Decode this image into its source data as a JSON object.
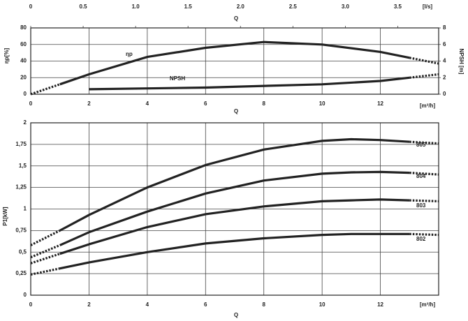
{
  "chart_data": [
    {
      "type": "line",
      "xtop_label": "Q",
      "xtop_unit": "[l/s]",
      "xtop_lim": [
        0,
        3.89
      ],
      "xtop_ticks": [
        0,
        0.5,
        {
          "value": 1,
          "label": "1.0"
        },
        1.5,
        {
          "value": 2,
          "label": "2.0"
        },
        2.5,
        {
          "value": 3,
          "label": "3.0"
        },
        3.5
      ],
      "xlabel": "Q",
      "xunit": "[m³/h]",
      "ylabel": "ηp[%]",
      "y2label": "NPSH [m]",
      "xlim": [
        0,
        14
      ],
      "xticks": [
        0,
        2,
        4,
        6,
        8,
        10,
        12
      ],
      "ylim": [
        0,
        80
      ],
      "yticks": [
        0,
        20,
        40,
        60,
        80
      ],
      "y2lim": [
        0,
        8
      ],
      "y2ticks": [
        0,
        2,
        4,
        6,
        8
      ],
      "grid": true,
      "series": [
        {
          "name": "ηp",
          "color": "#222222",
          "x": [
            0,
            1,
            2,
            4,
            6,
            8,
            10,
            12,
            13,
            14
          ],
          "values": [
            0,
            12,
            24,
            45,
            56,
            63,
            60,
            51,
            44,
            37
          ],
          "solid_range": [
            1,
            13
          ]
        },
        {
          "name": "NPSH",
          "axis": "y2",
          "color": "#222222",
          "x": [
            2,
            4,
            6,
            8,
            10,
            12,
            13,
            14
          ],
          "values": [
            0.6,
            0.7,
            0.8,
            1.0,
            1.2,
            1.6,
            2.0,
            2.4
          ],
          "solid_range": [
            2,
            13
          ]
        }
      ]
    },
    {
      "type": "line",
      "xlabel": "Q",
      "xunit": "[m³/h]",
      "ylabel": "P1[kW]",
      "xlim": [
        0,
        14
      ],
      "xticks": [
        0,
        2,
        4,
        6,
        8,
        10,
        12
      ],
      "ylim": [
        0,
        2
      ],
      "yticks": [
        0,
        {
          "value": 0.25,
          "label": "0,25"
        },
        {
          "value": 0.5,
          "label": "0,5"
        },
        {
          "value": 0.75,
          "label": "0,75"
        },
        1,
        {
          "value": 1.25,
          "label": "1,25"
        },
        {
          "value": 1.5,
          "label": "1,5"
        },
        {
          "value": 1.75,
          "label": "1,75"
        },
        2
      ],
      "grid": true,
      "series": [
        {
          "name": "805",
          "color": "#222222",
          "x": [
            0,
            1,
            2,
            4,
            6,
            8,
            10,
            11,
            12,
            13,
            14
          ],
          "values": [
            0.58,
            0.75,
            0.93,
            1.25,
            1.51,
            1.69,
            1.79,
            1.81,
            1.8,
            1.78,
            1.76
          ],
          "solid_range": [
            1,
            13
          ]
        },
        {
          "name": "804",
          "color": "#222222",
          "x": [
            0,
            1,
            2,
            4,
            6,
            8,
            10,
            11,
            12,
            13,
            14
          ],
          "values": [
            0.44,
            0.58,
            0.73,
            0.97,
            1.18,
            1.33,
            1.41,
            1.425,
            1.43,
            1.42,
            1.4
          ],
          "solid_range": [
            1,
            13
          ]
        },
        {
          "name": "803",
          "color": "#222222",
          "x": [
            0,
            1,
            2,
            4,
            6,
            8,
            10,
            11,
            12,
            13,
            14
          ],
          "values": [
            0.37,
            0.48,
            0.59,
            0.79,
            0.94,
            1.03,
            1.09,
            1.1,
            1.11,
            1.1,
            1.09
          ],
          "solid_range": [
            1,
            13
          ]
        },
        {
          "name": "802",
          "color": "#222222",
          "x": [
            0,
            1,
            2,
            4,
            6,
            8,
            10,
            11,
            12,
            13,
            14
          ],
          "values": [
            0.24,
            0.31,
            0.38,
            0.5,
            0.6,
            0.66,
            0.7,
            0.71,
            0.71,
            0.71,
            0.7
          ],
          "solid_range": [
            1,
            13
          ]
        }
      ]
    }
  ]
}
